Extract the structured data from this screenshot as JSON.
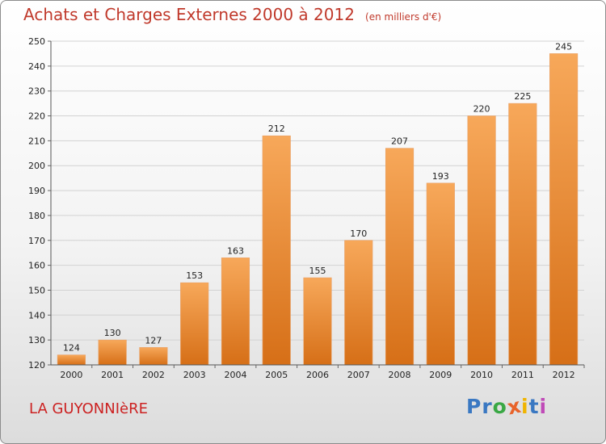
{
  "chart_data": {
    "type": "bar",
    "title": "Achats et Charges Externes 2000 à 2012",
    "unit": "(en milliers d'€)",
    "categories": [
      "2000",
      "2001",
      "2002",
      "2003",
      "2004",
      "2005",
      "2006",
      "2007",
      "2008",
      "2009",
      "2010",
      "2011",
      "2012"
    ],
    "values": [
      124,
      130,
      127,
      153,
      163,
      212,
      155,
      170,
      207,
      193,
      220,
      225,
      245
    ],
    "ylim": [
      120,
      250
    ],
    "yticks": [
      120,
      130,
      140,
      150,
      160,
      170,
      180,
      190,
      200,
      210,
      220,
      230,
      240,
      250
    ],
    "grid": true,
    "bar_color": "#f2913d"
  },
  "place": "LA GUYONNIèRE",
  "logo": {
    "letters": [
      "P",
      "r",
      "o",
      "x",
      "i",
      "t",
      "i"
    ],
    "colors": [
      "#3a78c2",
      "#3a78c2",
      "#3aa845",
      "#e8632a",
      "#f0b400",
      "#3a78c2",
      "#c04ab8"
    ]
  }
}
